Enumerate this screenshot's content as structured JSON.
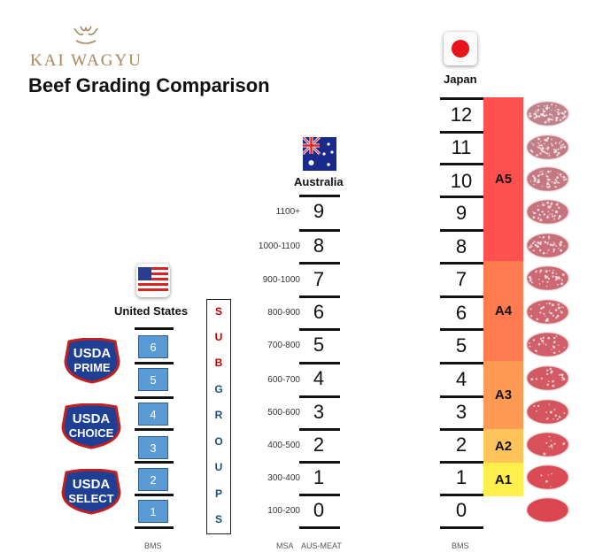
{
  "brand": {
    "name": "KAI WAGYU"
  },
  "title": "Beef Grading Comparison",
  "countries": {
    "us": "United States",
    "australia": "Australia",
    "japan": "Japan"
  },
  "usda": {
    "prime": [
      "USDA",
      "PRIME"
    ],
    "choice": [
      "USDA",
      "CHOICE"
    ],
    "select": [
      "USDA",
      "SELECT"
    ],
    "bms": [
      "6",
      "5",
      "4",
      "3",
      "2",
      "1"
    ]
  },
  "subgroups": [
    "S",
    "U",
    "B",
    "G",
    "R",
    "O",
    "U",
    "P",
    "S"
  ],
  "australia": {
    "msa_ranges": [
      "1100+",
      "1000-1100",
      "900-1000",
      "800-900",
      "700-800",
      "600-700",
      "500-600",
      "400-500",
      "300-400",
      "100-200"
    ],
    "aus_meat": [
      "9",
      "8",
      "7",
      "6",
      "5",
      "4",
      "3",
      "2",
      "1",
      "0"
    ]
  },
  "japan": {
    "bms": [
      "12",
      "11",
      "10",
      "9",
      "8",
      "7",
      "6",
      "5",
      "4",
      "3",
      "2",
      "1",
      "0"
    ],
    "grades": [
      {
        "label": "A5",
        "color": "#ff5050"
      },
      {
        "label": "A4",
        "color": "#ff7a4f"
      },
      {
        "label": "A3",
        "color": "#ff9a55"
      },
      {
        "label": "A2",
        "color": "#ffc35a"
      },
      {
        "label": "A1",
        "color": "#ffef4d"
      }
    ]
  },
  "footer": {
    "us": "BMS",
    "msa": "MSA",
    "aus_meat": "AUS-MEAT",
    "japan": "BMS"
  }
}
